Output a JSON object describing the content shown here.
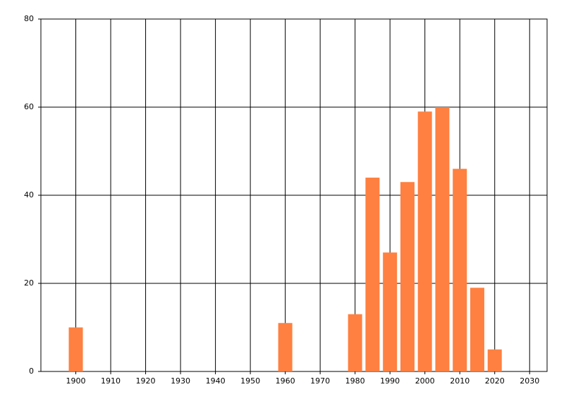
{
  "chart_data": {
    "type": "bar",
    "x": [
      1900,
      1960,
      1980,
      1985,
      1990,
      1995,
      2000,
      2005,
      2010,
      2015,
      2020
    ],
    "values": [
      10,
      11,
      13,
      44,
      27,
      43,
      59,
      60,
      46,
      19,
      5
    ],
    "color": "#ff8040",
    "xlim": [
      1890,
      2035
    ],
    "xticks": [
      1900,
      1910,
      1920,
      1930,
      1940,
      1950,
      1960,
      1970,
      1980,
      1990,
      2000,
      2010,
      2020,
      2030
    ],
    "ylim": [
      0,
      80
    ],
    "yticks": [
      0,
      20,
      40,
      60,
      80
    ],
    "grid": true
  }
}
